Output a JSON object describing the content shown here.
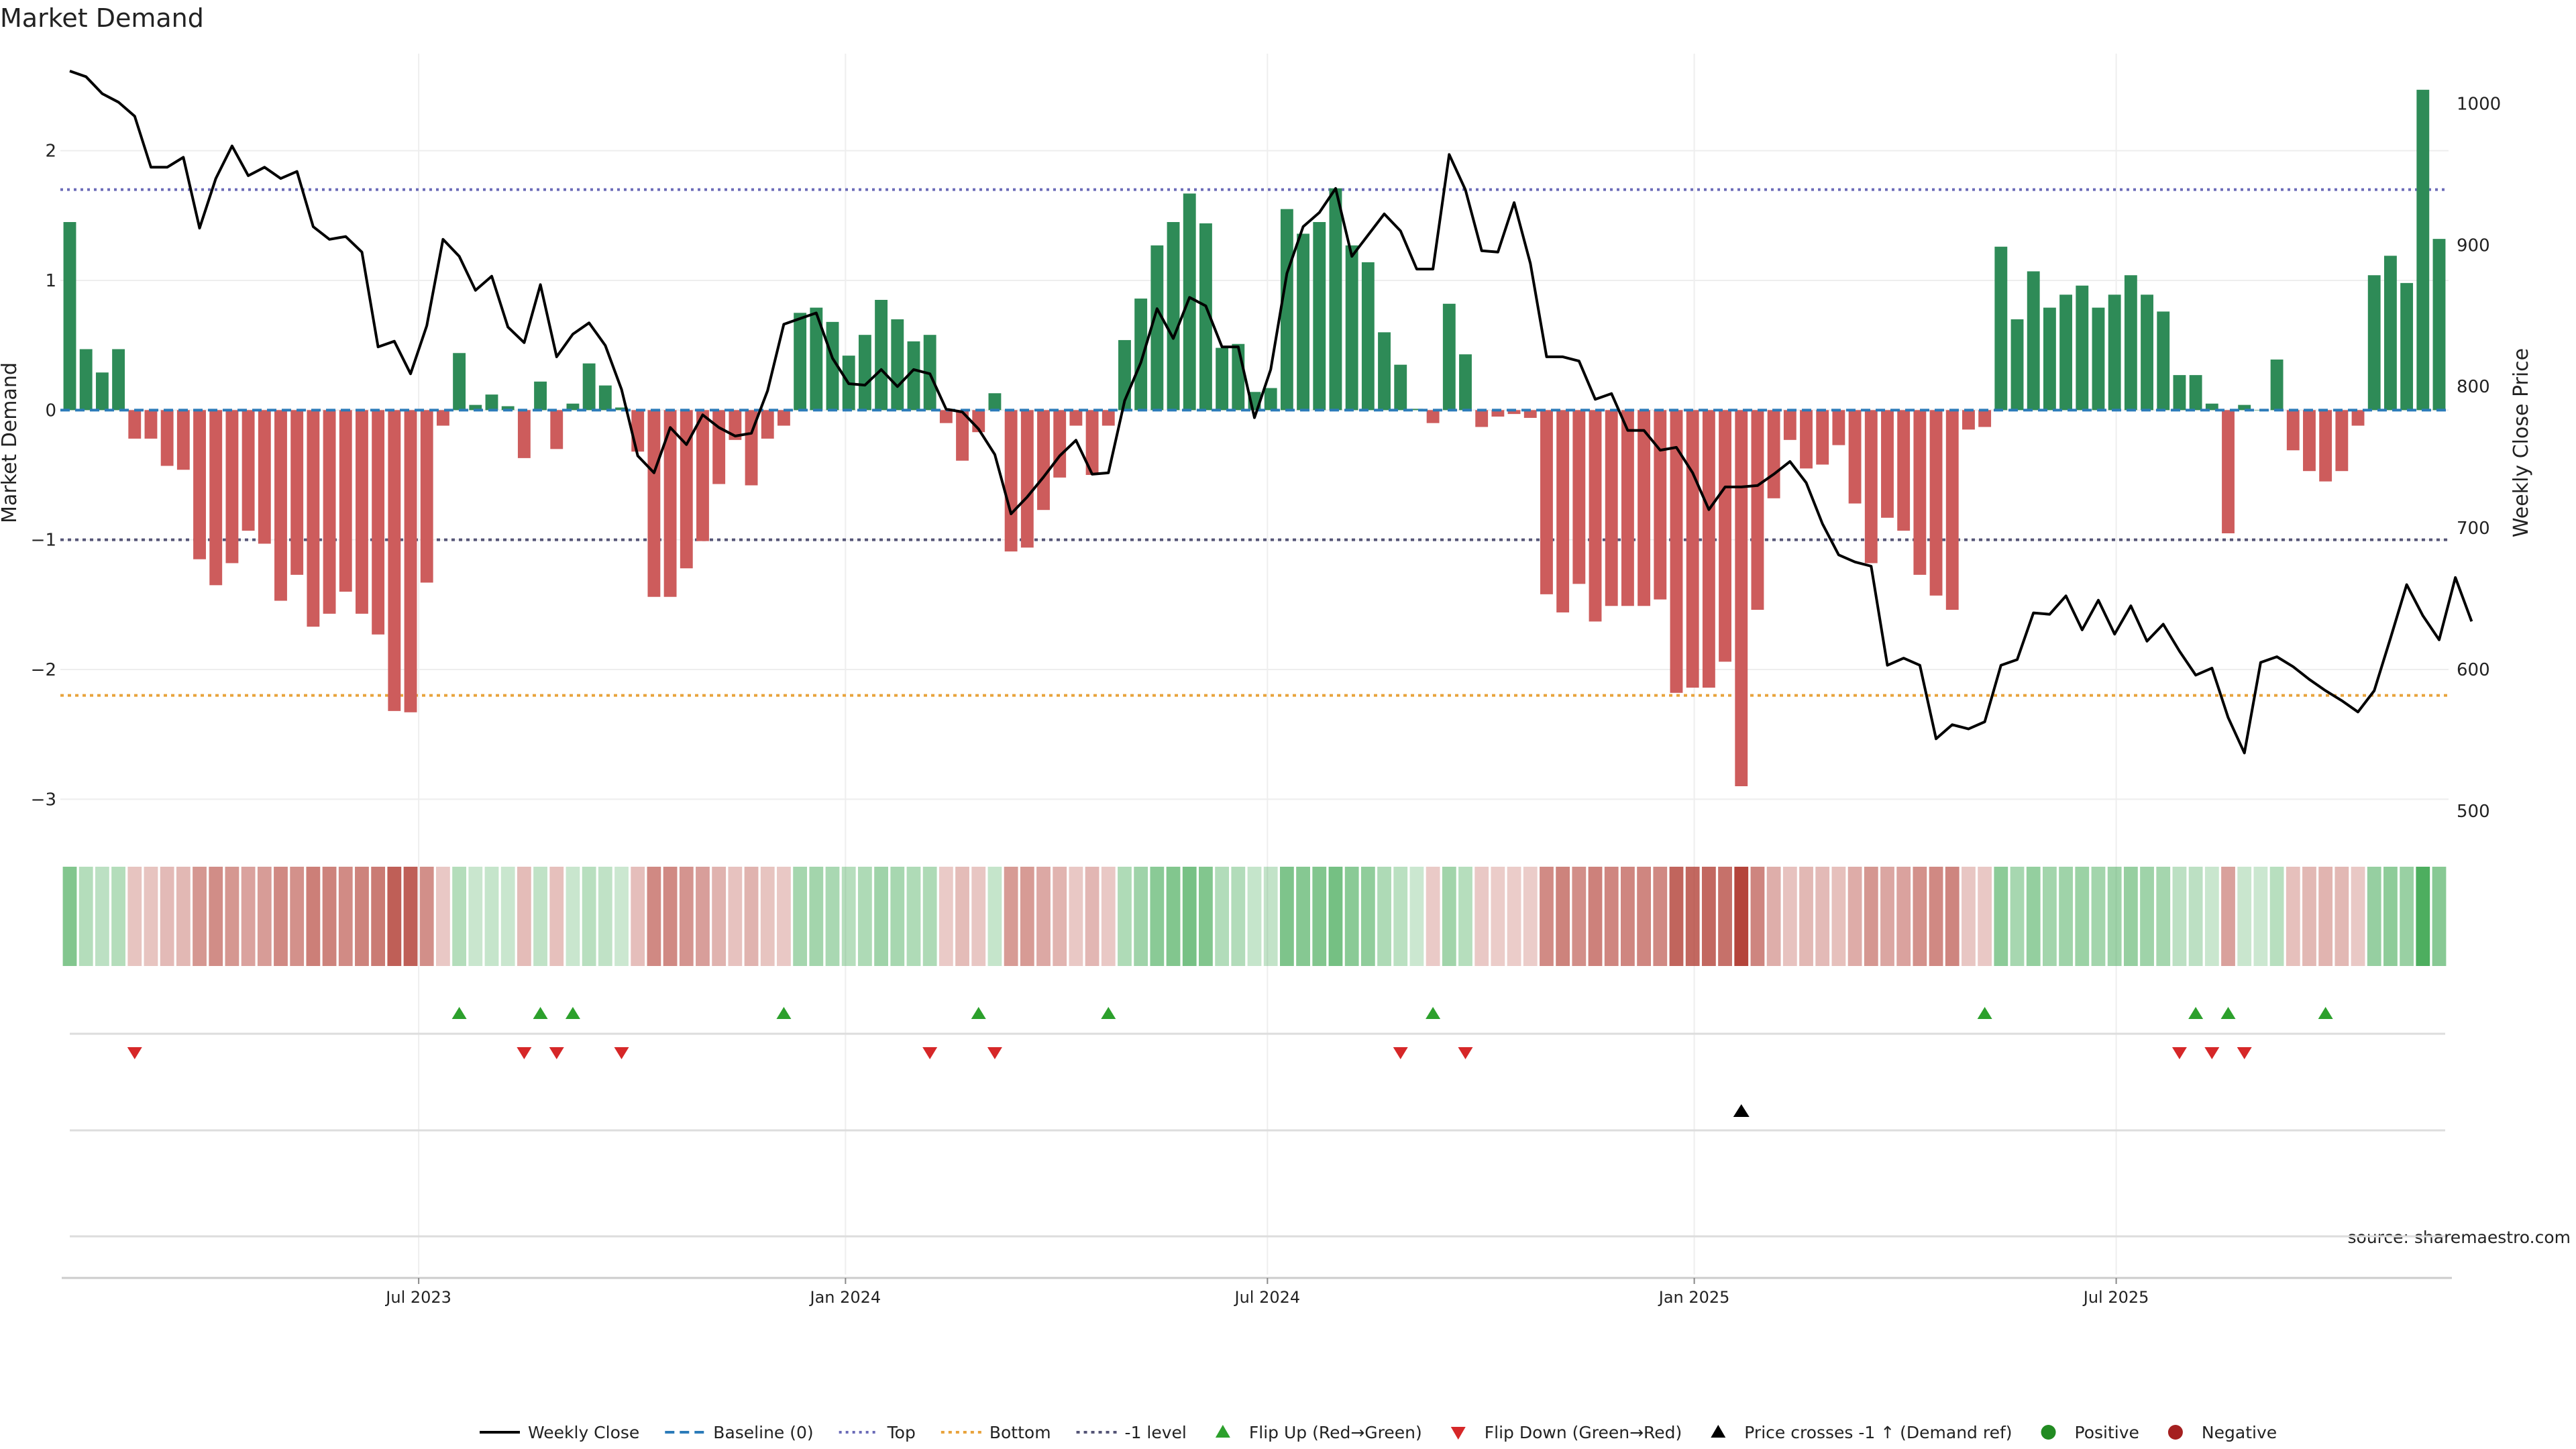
{
  "title": "Market Demand",
  "source": "source: sharemaestro.com",
  "chart_data": {
    "type": "bar",
    "title": "Market Demand",
    "ylabel": "Market Demand",
    "y2label": "Weekly Close Price",
    "ylim": [
      -3.2,
      2.8
    ],
    "y2lim": [
      490,
      1040
    ],
    "yticks": [
      2,
      1,
      0,
      -1,
      -2,
      -3
    ],
    "ytick_labels": [
      "2",
      "1",
      "0",
      "−1",
      "−2",
      "−3"
    ],
    "y2ticks": [
      1000,
      900,
      800,
      700,
      600,
      500
    ],
    "y2tick_labels": [
      "1000",
      "900",
      "800",
      "700",
      "600",
      "500"
    ],
    "xticks": [
      21.5,
      47.8,
      73.8,
      100.1,
      126.1
    ],
    "xtick_labels": [
      "Jul 2023",
      "Jan 2024",
      "Jul 2024",
      "Jan 2025",
      "Jul 2025"
    ],
    "reference_lines": {
      "top": 1.7,
      "bottom": -2.2,
      "minus_one": -1.0,
      "baseline": 0
    },
    "colors": {
      "positive": "#2e8b57",
      "negative": "#cd5c5c",
      "price": "#000000",
      "top": "#6b6bb8",
      "bottom": "#e8a33c",
      "minus_one": "#555577",
      "baseline": "#2b7bb9",
      "flip_up": "#2ca02c",
      "flip_down": "#d62728"
    },
    "demand": [
      1.45,
      0.47,
      0.29,
      0.47,
      -0.22,
      -0.22,
      -0.43,
      -0.46,
      -1.15,
      -1.35,
      -1.18,
      -0.93,
      -1.03,
      -1.47,
      -1.27,
      -1.67,
      -1.57,
      -1.4,
      -1.57,
      -1.73,
      -2.32,
      -2.33,
      -1.33,
      -0.12,
      0.44,
      0.04,
      0.12,
      0.03,
      -0.37,
      0.22,
      -0.3,
      0.05,
      0.36,
      0.19,
      0.02,
      -0.32,
      -1.44,
      -1.44,
      -1.22,
      -1.01,
      -0.57,
      -0.23,
      -0.58,
      -0.22,
      -0.12,
      0.75,
      0.79,
      0.68,
      0.42,
      0.58,
      0.85,
      0.7,
      0.53,
      0.58,
      -0.1,
      -0.39,
      -0.17,
      0.13,
      -1.09,
      -1.06,
      -0.77,
      -0.52,
      -0.12,
      -0.5,
      -0.12,
      0.54,
      0.86,
      1.27,
      1.45,
      1.67,
      1.44,
      0.48,
      0.51,
      0.14,
      0.17,
      1.55,
      1.36,
      1.45,
      1.71,
      1.27,
      1.14,
      0.6,
      0.35,
      0.01,
      -0.1,
      0.82,
      0.43,
      -0.13,
      -0.05,
      -0.03,
      -0.06,
      -1.42,
      -1.56,
      -1.34,
      -1.63,
      -1.51,
      -1.51,
      -1.51,
      -1.46,
      -2.18,
      -2.14,
      -2.14,
      -1.94,
      -2.9,
      -1.54,
      -0.68,
      -0.23,
      -0.45,
      -0.42,
      -0.27,
      -0.72,
      -1.18,
      -0.83,
      -0.93,
      -1.27,
      -1.43,
      -1.54,
      -0.15,
      -0.13,
      1.26,
      0.7,
      1.07,
      0.79,
      0.89,
      0.96,
      0.79,
      0.89,
      1.04,
      0.89,
      0.76,
      0.27,
      0.27,
      0.05,
      -0.95,
      0.04,
      0,
      0.39,
      -0.31,
      -0.47,
      -0.55,
      -0.47,
      -0.12,
      1.04,
      1.19,
      0.98,
      2.47,
      1.32
    ],
    "price": [
      1023,
      1019,
      1007,
      1001,
      991,
      955,
      955,
      962,
      912,
      947,
      970,
      949,
      955,
      947,
      952,
      913,
      904,
      906,
      895,
      828,
      832,
      809,
      843,
      904,
      892,
      868,
      878,
      842,
      831,
      872,
      821,
      837,
      845,
      829,
      798,
      751,
      739,
      771,
      759,
      780,
      771,
      765,
      767,
      797,
      844,
      848,
      852,
      820,
      802,
      801,
      812,
      800,
      812,
      809,
      784,
      782,
      770,
      752,
      710,
      722,
      736,
      751,
      762,
      738,
      739,
      790,
      817,
      855,
      834,
      863,
      857,
      828,
      828,
      778,
      812,
      880,
      913,
      923,
      940,
      892,
      907,
      922,
      910,
      883,
      883,
      964,
      939,
      896,
      895,
      930,
      887,
      821,
      821,
      818,
      791,
      795,
      769,
      769,
      755,
      757,
      739,
      713,
      729,
      729,
      730,
      738,
      747,
      732,
      703,
      681,
      676,
      673,
      603,
      608,
      603,
      551,
      561,
      558,
      563,
      603,
      607,
      640,
      639,
      652,
      628,
      649,
      625,
      645,
      620,
      632,
      613,
      596,
      601,
      566,
      541,
      605,
      609,
      602,
      593,
      585,
      578,
      570,
      585,
      622,
      660,
      638,
      621,
      665,
      634
    ],
    "flip_up": [
      24,
      29,
      31,
      44,
      56,
      64,
      84,
      118,
      131,
      133,
      139
    ],
    "flip_down": [
      4,
      28,
      30,
      34,
      53,
      57,
      82,
      86,
      130,
      132,
      134
    ],
    "price_cross": [
      103
    ],
    "legend": {
      "position": "bottom-center",
      "entries": [
        {
          "label": "Weekly Close",
          "kind": "line"
        },
        {
          "label": "Baseline (0)",
          "kind": "dash"
        },
        {
          "label": "Top",
          "kind": "dotted"
        },
        {
          "label": "Bottom",
          "kind": "dotted-orange"
        },
        {
          "label": "-1 level",
          "kind": "dotted-gray"
        },
        {
          "label": "Flip Up (Red→Green)",
          "kind": "tri-up"
        },
        {
          "label": "Flip Down (Green→Red)",
          "kind": "tri-down"
        },
        {
          "label": "Price crosses -1 ↑ (Demand ref)",
          "kind": "tri-black"
        },
        {
          "label": "Positive",
          "kind": "dot-green"
        },
        {
          "label": "Negative",
          "kind": "dot-red"
        }
      ]
    }
  }
}
